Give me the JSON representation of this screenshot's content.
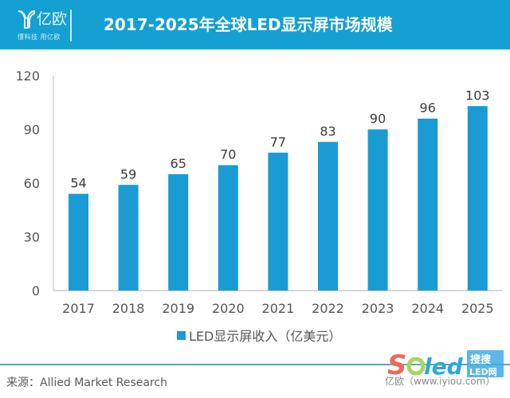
{
  "header": {
    "logo_text": "亿欧",
    "logo_slogan": "懂科技 用亿欧",
    "title": "2017-2025年全球LED显示屏市场规模"
  },
  "chart_data": {
    "type": "bar",
    "title": "2017-2025年全球LED显示屏市场规模",
    "categories": [
      "2017",
      "2018",
      "2019",
      "2020",
      "2021",
      "2022",
      "2023",
      "2024",
      "2025"
    ],
    "series": [
      {
        "name": "LED显示屏收入（亿美元）",
        "values": [
          54,
          59,
          65,
          70,
          77,
          83,
          90,
          96,
          103
        ],
        "color": "#1a9bd3"
      }
    ],
    "xlabel": "",
    "ylabel": "",
    "ylim": [
      0,
      120
    ],
    "yticks": [
      0,
      30,
      60,
      90,
      120
    ],
    "grid": false,
    "data_labels": true,
    "legend_position": "bottom"
  },
  "legend": {
    "label": "LED显示屏收入（亿美元）"
  },
  "footer": {
    "source": "来源：Allied Market Research",
    "credit": "亿欧（www.iyiou.com）",
    "watermark": "Soled 搜搜LED网"
  },
  "colors": {
    "header_bg": "#14a0d2",
    "bar": "#1a9bd3",
    "axis": "#c8c8c8"
  }
}
